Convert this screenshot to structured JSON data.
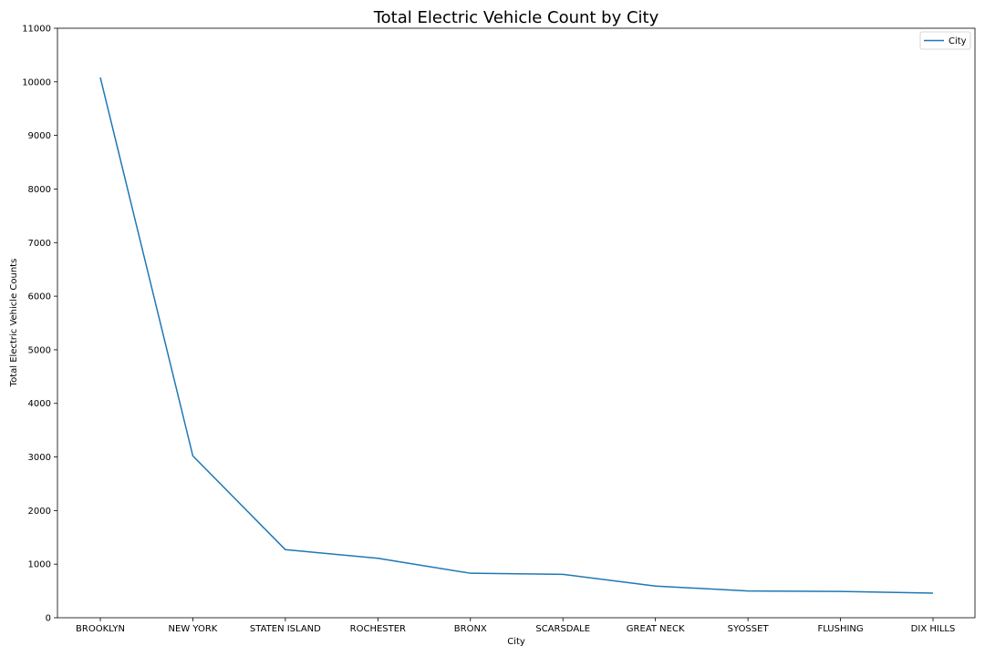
{
  "chart_data": {
    "type": "line",
    "title": "Total Electric Vehicle Count by City",
    "xlabel": "City",
    "ylabel": "Total Electric Vehicle Counts",
    "categories": [
      "BROOKLYN",
      "NEW YORK",
      "STATEN ISLAND",
      "ROCHESTER",
      "BRONX",
      "SCARSDALE",
      "GREAT NECK",
      "SYOSSET",
      "FLUSHING",
      "DIX HILLS"
    ],
    "series": [
      {
        "name": "City",
        "values": [
          10080,
          3020,
          1270,
          1110,
          830,
          810,
          590,
          500,
          490,
          460
        ]
      }
    ],
    "ylim": [
      0,
      11000
    ],
    "yticks": [
      0,
      1000,
      2000,
      3000,
      4000,
      5000,
      6000,
      7000,
      8000,
      9000,
      10000,
      11000
    ],
    "grid": false,
    "legend_position": "top-right",
    "colors": {
      "series": "#1f77b4",
      "axes": "#000000",
      "legend_border": "#cccccc"
    }
  }
}
